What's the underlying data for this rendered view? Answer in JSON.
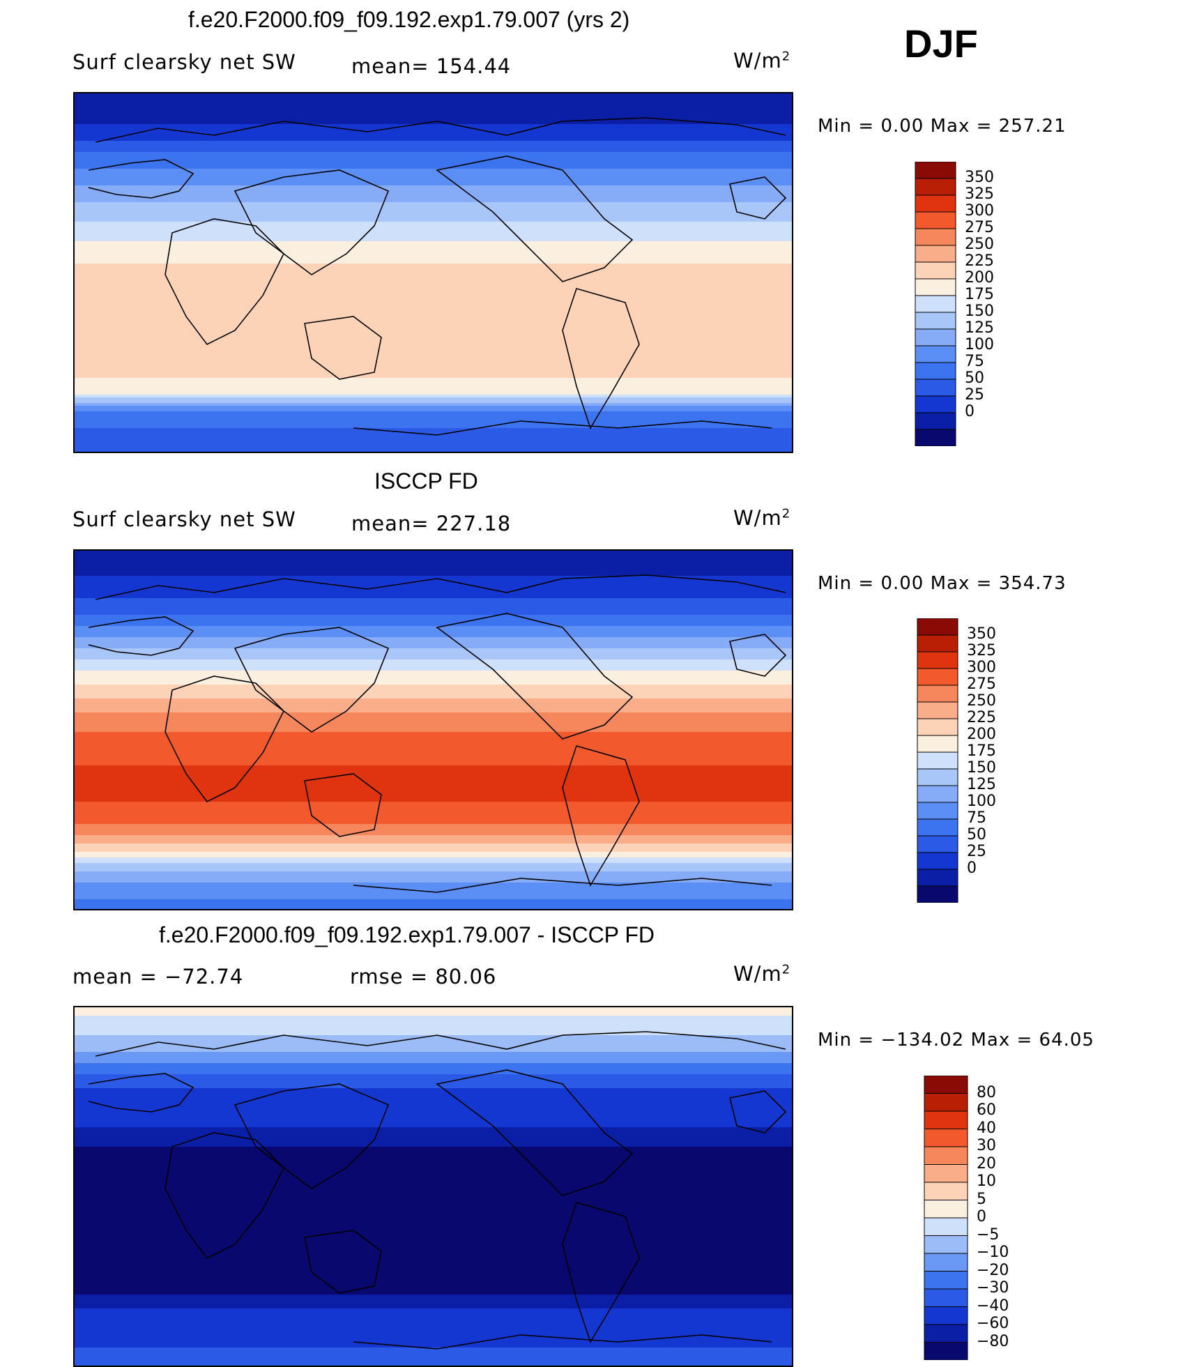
{
  "season": "DJF",
  "colors": {
    "levels_abs": [
      "#08086e",
      "#0a1fa6",
      "#1437d2",
      "#2a5ae6",
      "#3c74f0",
      "#5b8ff5",
      "#86acf7",
      "#a9c6f8",
      "#cfe1fa",
      "#fbf0e0",
      "#fcd3b6",
      "#f9ad88",
      "#f6865c",
      "#f25a2e",
      "#e03410",
      "#b81f05",
      "#8a0a05"
    ],
    "levels_diff": [
      "#08086e",
      "#0a1fa6",
      "#1437d2",
      "#2a5ae6",
      "#3c74f0",
      "#6a98f5",
      "#9cbcf8",
      "#cfe1fa",
      "#fbf0e0",
      "#fcd3b6",
      "#f9ad88",
      "#f6865c",
      "#f25a2e",
      "#e03410",
      "#b81f05",
      "#8a0a05"
    ],
    "coast": "#000000"
  },
  "chart_data": [
    {
      "type": "heatmap",
      "title": "f.e20.F2000.f09_f09.192.exp1.79.007 (yrs 2)",
      "left_label": "Surf clearsky net SW",
      "mean_label": "mean=  154.44",
      "units": "W/m",
      "units_sup": "2",
      "minmax": "Min  =     0.00  Max  =  257.21",
      "min": 0.0,
      "max": 257.21,
      "mean": 154.44,
      "colorbar_ticks": [
        "350",
        "325",
        "300",
        "275",
        "250",
        "225",
        "200",
        "175",
        "150",
        "125",
        "100",
        "75",
        "50",
        "25",
        "0"
      ],
      "zonal_profile_by_latitude": [
        [
          90,
          0
        ],
        [
          80,
          10
        ],
        [
          70,
          40
        ],
        [
          60,
          80
        ],
        [
          50,
          110
        ],
        [
          40,
          140
        ],
        [
          30,
          165
        ],
        [
          20,
          190
        ],
        [
          10,
          215
        ],
        [
          0,
          235
        ],
        [
          -10,
          240
        ],
        [
          -20,
          240
        ],
        [
          -30,
          240
        ],
        [
          -40,
          240
        ],
        [
          -50,
          235
        ],
        [
          -60,
          200
        ],
        [
          -70,
          90
        ],
        [
          -80,
          70
        ],
        [
          -90,
          60
        ]
      ]
    },
    {
      "type": "heatmap",
      "title": "ISCCP FD",
      "left_label": "Surf clearsky net SW",
      "mean_label": "mean=  227.18",
      "units": "W/m",
      "units_sup": "2",
      "minmax": "Min  =     0.00  Max  =  354.73",
      "min": 0.0,
      "max": 354.73,
      "mean": 227.18,
      "colorbar_ticks": [
        "350",
        "325",
        "300",
        "275",
        "250",
        "225",
        "200",
        "175",
        "150",
        "125",
        "100",
        "75",
        "50",
        "25",
        "0"
      ],
      "zonal_profile_by_latitude": [
        [
          90,
          10
        ],
        [
          80,
          20
        ],
        [
          70,
          40
        ],
        [
          60,
          70
        ],
        [
          50,
          110
        ],
        [
          40,
          160
        ],
        [
          30,
          200
        ],
        [
          20,
          240
        ],
        [
          10,
          275
        ],
        [
          0,
          300
        ],
        [
          -10,
          315
        ],
        [
          -20,
          330
        ],
        [
          -30,
          330
        ],
        [
          -40,
          320
        ],
        [
          -50,
          290
        ],
        [
          -60,
          230
        ],
        [
          -70,
          150
        ],
        [
          -80,
          110
        ],
        [
          -90,
          90
        ]
      ]
    },
    {
      "type": "heatmap",
      "title": "f.e20.F2000.f09_f09.192.exp1.79.007 - ISCCP FD",
      "left_label": "mean  =  −72.74",
      "mean_label": "rmse  =    80.06",
      "units": "W/m",
      "units_sup": "2",
      "minmax": "Min  =  −134.02  Max  =    64.05",
      "min": -134.02,
      "max": 64.05,
      "mean": -72.74,
      "rmse": 80.06,
      "colorbar_ticks": [
        "80",
        "60",
        "40",
        "30",
        "20",
        "10",
        "5",
        "0",
        "−5",
        "−10",
        "−20",
        "−30",
        "−40",
        "−60",
        "−80"
      ],
      "zonal_profile_by_latitude": [
        [
          90,
          2
        ],
        [
          80,
          -3
        ],
        [
          70,
          -8
        ],
        [
          60,
          -25
        ],
        [
          50,
          -40
        ],
        [
          40,
          -55
        ],
        [
          30,
          -60
        ],
        [
          20,
          -80
        ],
        [
          10,
          -90
        ],
        [
          0,
          -95
        ],
        [
          -10,
          -100
        ],
        [
          -20,
          -100
        ],
        [
          -30,
          -100
        ],
        [
          -40,
          -100
        ],
        [
          -50,
          -90
        ],
        [
          -60,
          -60
        ],
        [
          -70,
          -45
        ],
        [
          -80,
          -40
        ],
        [
          -90,
          -35
        ]
      ]
    }
  ]
}
